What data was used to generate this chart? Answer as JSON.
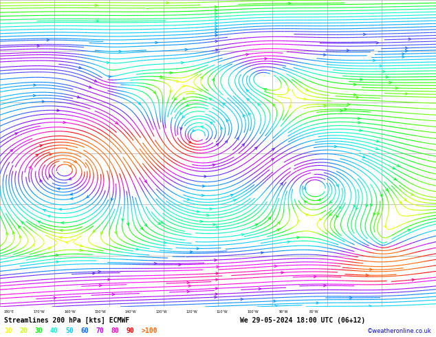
{
  "title": "Streamlines 200 hPa [kts] ECMWF",
  "datetime": "We 29-05-2024 18:00 UTC (06+12)",
  "credit": "©weatheronline.co.uk",
  "legend_values": [
    "10",
    "20",
    "30",
    "40",
    "50",
    "60",
    "70",
    "80",
    "90",
    ">100"
  ],
  "legend_colors": [
    "#ffff00",
    "#ccff00",
    "#00ff00",
    "#00ffcc",
    "#00ccff",
    "#0066ff",
    "#cc00ff",
    "#ff00cc",
    "#ff0000",
    "#ff6600"
  ],
  "bg_color": "#ffffff",
  "grid_color": "#aaaaaa",
  "text_color": "#000000",
  "bottom_bar_color": "#cccccc",
  "figsize": [
    6.34,
    4.9
  ],
  "dpi": 100,
  "speed_colormap_stops": [
    [
      0.0,
      "#ffff00"
    ],
    [
      0.1,
      "#ccff00"
    ],
    [
      0.2,
      "#00ff00"
    ],
    [
      0.3,
      "#00ffcc"
    ],
    [
      0.4,
      "#00ccff"
    ],
    [
      0.5,
      "#0088ff"
    ],
    [
      0.6,
      "#8800ff"
    ],
    [
      0.7,
      "#ff00ff"
    ],
    [
      0.8,
      "#ff0000"
    ],
    [
      0.9,
      "#ff6600"
    ],
    [
      1.0,
      "#ff6600"
    ]
  ]
}
